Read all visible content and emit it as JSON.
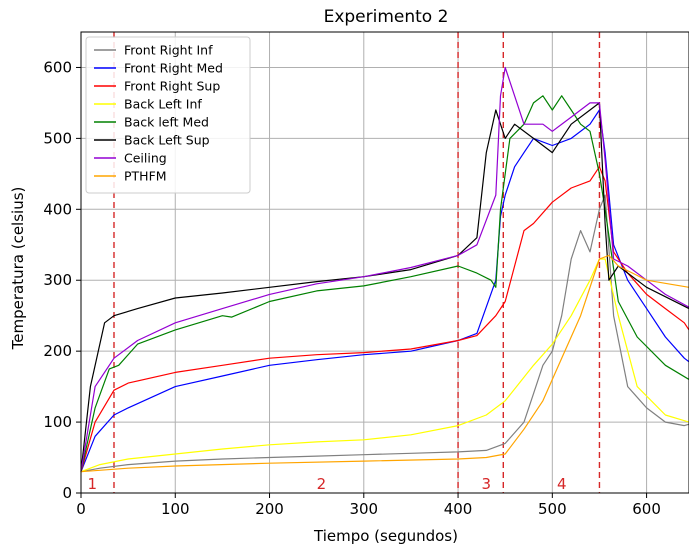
{
  "chart_data": {
    "type": "line",
    "title": "Experimento 2",
    "xlabel": "Tiempo (segundos)",
    "ylabel": "Temperatura (celsius)",
    "xlim": [
      0,
      645
    ],
    "ylim": [
      0,
      650
    ],
    "xticks": [
      "0",
      "100",
      "200",
      "300",
      "400",
      "500",
      "600"
    ],
    "yticks": [
      "0",
      "100",
      "200",
      "300",
      "400",
      "500",
      "600"
    ],
    "xtick_values": [
      0,
      100,
      200,
      300,
      400,
      500,
      600
    ],
    "ytick_values": [
      0,
      100,
      200,
      300,
      400,
      500,
      600
    ],
    "grid": true,
    "legend_position": "upper-left",
    "phase_lines": [
      35,
      400,
      448,
      550
    ],
    "phase_line_color": "#d62728",
    "phase_labels": [
      {
        "text": "1",
        "x": 12
      },
      {
        "text": "2",
        "x": 255
      },
      {
        "text": "3",
        "x": 430
      },
      {
        "text": "4",
        "x": 510
      }
    ],
    "series": [
      {
        "name": "Front Right Inf",
        "color": "#808080",
        "x": [
          0,
          20,
          50,
          100,
          150,
          200,
          250,
          300,
          350,
          400,
          430,
          450,
          470,
          480,
          490,
          500,
          510,
          520,
          530,
          540,
          550,
          556,
          565,
          580,
          600,
          620,
          640,
          645
        ],
        "y": [
          30,
          35,
          40,
          45,
          48,
          50,
          52,
          54,
          56,
          58,
          60,
          70,
          100,
          140,
          180,
          200,
          250,
          330,
          370,
          340,
          400,
          420,
          250,
          150,
          120,
          100,
          95,
          97
        ]
      },
      {
        "name": "Front Right Med",
        "color": "#0000ff",
        "x": [
          0,
          15,
          35,
          50,
          100,
          150,
          200,
          250,
          300,
          350,
          400,
          420,
          440,
          445,
          450,
          460,
          470,
          480,
          500,
          520,
          540,
          550,
          556,
          565,
          580,
          600,
          620,
          640,
          645
        ],
        "y": [
          30,
          80,
          110,
          120,
          150,
          165,
          180,
          188,
          195,
          200,
          215,
          225,
          300,
          390,
          420,
          460,
          480,
          500,
          490,
          500,
          520,
          540,
          480,
          350,
          300,
          260,
          220,
          190,
          185
        ]
      },
      {
        "name": "Front Right Sup",
        "color": "#ff0000",
        "x": [
          0,
          15,
          35,
          50,
          100,
          150,
          200,
          250,
          300,
          350,
          400,
          420,
          440,
          450,
          460,
          470,
          480,
          500,
          520,
          540,
          550,
          556,
          565,
          580,
          600,
          620,
          640,
          645
        ],
        "y": [
          30,
          100,
          145,
          155,
          170,
          180,
          190,
          195,
          198,
          203,
          215,
          222,
          250,
          270,
          320,
          370,
          380,
          410,
          430,
          440,
          460,
          440,
          340,
          310,
          280,
          260,
          240,
          230
        ]
      },
      {
        "name": "Back Left Inf",
        "color": "#ffff00",
        "x": [
          0,
          20,
          50,
          100,
          150,
          200,
          250,
          300,
          350,
          400,
          430,
          450,
          480,
          500,
          520,
          540,
          550,
          556,
          570,
          590,
          620,
          645
        ],
        "y": [
          30,
          40,
          48,
          55,
          62,
          68,
          72,
          75,
          82,
          95,
          110,
          130,
          180,
          210,
          250,
          300,
          330,
          330,
          250,
          150,
          110,
          100
        ]
      },
      {
        "name": "Back left Med",
        "color": "#008000",
        "x": [
          0,
          15,
          30,
          40,
          60,
          100,
          150,
          160,
          200,
          250,
          300,
          350,
          400,
          420,
          435,
          440,
          445,
          455,
          470,
          480,
          490,
          500,
          510,
          520,
          530,
          540,
          550,
          556,
          570,
          590,
          620,
          645
        ],
        "y": [
          30,
          120,
          175,
          180,
          210,
          230,
          250,
          248,
          270,
          285,
          292,
          305,
          320,
          310,
          300,
          290,
          400,
          500,
          520,
          550,
          560,
          540,
          560,
          540,
          520,
          510,
          450,
          400,
          270,
          220,
          180,
          160
        ]
      },
      {
        "name": "Back Left Sup",
        "color": "#000000",
        "x": [
          0,
          10,
          25,
          35,
          60,
          100,
          150,
          200,
          250,
          300,
          350,
          400,
          420,
          430,
          440,
          450,
          460,
          480,
          500,
          520,
          540,
          550,
          556,
          560,
          570,
          600,
          645
        ],
        "y": [
          30,
          150,
          240,
          250,
          260,
          275,
          282,
          290,
          298,
          305,
          315,
          335,
          360,
          480,
          540,
          500,
          520,
          500,
          480,
          520,
          540,
          550,
          380,
          300,
          320,
          290,
          260
        ]
      },
      {
        "name": "Ceiling",
        "color": "#9400d3",
        "x": [
          0,
          15,
          35,
          60,
          100,
          150,
          200,
          250,
          300,
          350,
          400,
          420,
          440,
          445,
          450,
          470,
          490,
          500,
          520,
          540,
          550,
          556,
          565,
          580,
          600,
          620,
          645
        ],
        "y": [
          30,
          150,
          190,
          215,
          240,
          260,
          280,
          295,
          305,
          318,
          335,
          350,
          420,
          560,
          600,
          520,
          520,
          510,
          530,
          550,
          550,
          470,
          330,
          320,
          300,
          280,
          262
        ]
      },
      {
        "name": "PTHFM",
        "color": "#ffa500",
        "x": [
          0,
          50,
          100,
          200,
          300,
          400,
          430,
          450,
          470,
          490,
          510,
          530,
          550,
          560,
          570,
          600,
          645
        ],
        "y": [
          30,
          35,
          38,
          42,
          45,
          48,
          50,
          55,
          90,
          130,
          190,
          250,
          330,
          335,
          320,
          300,
          290
        ]
      }
    ]
  }
}
